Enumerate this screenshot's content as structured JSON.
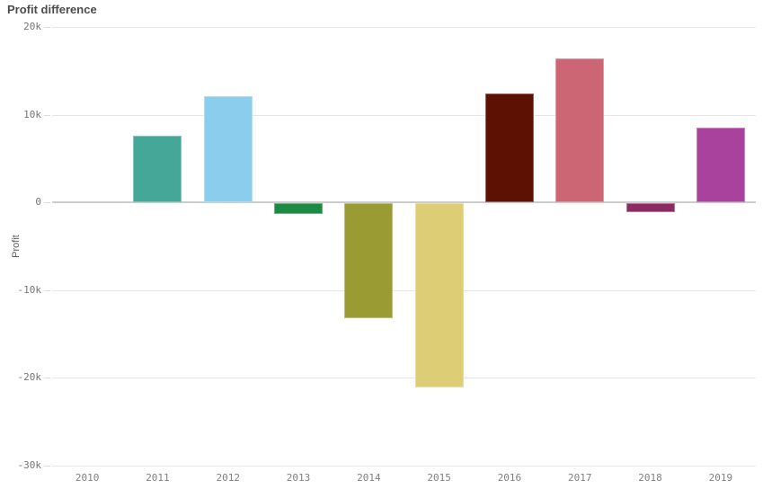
{
  "header": {
    "title": "Profit difference"
  },
  "chart_data": {
    "type": "bar",
    "title": "Profit difference",
    "xlabel": "",
    "ylabel": "Profit",
    "categories": [
      "2010",
      "2011",
      "2012",
      "2013",
      "2014",
      "2015",
      "2016",
      "2017",
      "2018",
      "2019"
    ],
    "values": [
      0,
      7600,
      12100,
      -1200,
      -13100,
      -21000,
      12400,
      16400,
      -1000,
      8500
    ],
    "bar_colors": [
      "#cccccc",
      "#45a797",
      "#8bcdec",
      "#1c8a42",
      "#9a9b33",
      "#ddcd74",
      "#5c1102",
      "#cc6675",
      "#8e2a62",
      "#a8429c"
    ],
    "ylim": [
      -30000,
      20000
    ],
    "ytick_values": [
      20000,
      10000,
      0,
      -10000,
      -20000,
      -30000
    ],
    "ytick_labels": [
      "20k",
      "10k",
      "0",
      "-10k",
      "-20k",
      "-30k"
    ],
    "grid": true,
    "legend": false,
    "zero_line": true
  },
  "colors": {
    "gridline": "#e6e6e6",
    "zero_line": "#cccccc",
    "title_text": "#4c4c4c",
    "axis_text": "#737373",
    "background": "#ffffff"
  }
}
